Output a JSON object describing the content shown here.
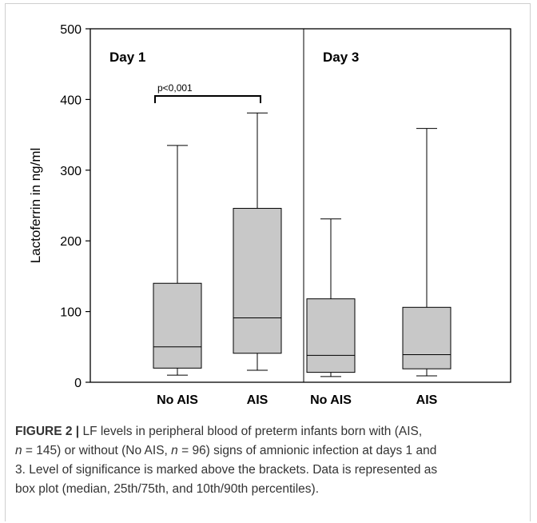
{
  "chart_data": {
    "type": "box",
    "ylabel": "Lactoferrin in ng/ml",
    "ylim": [
      0,
      500
    ],
    "yticks": [
      "0",
      "100",
      "200",
      "300",
      "400",
      "500"
    ],
    "panels": [
      {
        "label": "Day 1"
      },
      {
        "label": "Day 3"
      }
    ],
    "categories": [
      "No AIS",
      "AIS",
      "No AIS",
      "AIS"
    ],
    "boxes": [
      {
        "panel": "Day 1",
        "group": "No AIS",
        "p10": 10,
        "q1": 20,
        "median": 50,
        "q3": 140,
        "p90": 335
      },
      {
        "panel": "Day 1",
        "group": "AIS",
        "p10": 17,
        "q1": 41,
        "median": 91,
        "q3": 246,
        "p90": 381
      },
      {
        "panel": "Day 3",
        "group": "No AIS",
        "p10": 8,
        "q1": 14,
        "median": 38,
        "q3": 118,
        "p90": 231
      },
      {
        "panel": "Day 3",
        "group": "AIS",
        "p10": 9,
        "q1": 19,
        "median": 39,
        "q3": 106,
        "p90": 359
      }
    ],
    "annotations": [
      {
        "text": "p<0,001",
        "between": [
          "No AIS",
          "AIS"
        ],
        "panel": "Day 1",
        "y": 405
      }
    ],
    "box_color": "#c8c8c8",
    "line_color": "#000000"
  },
  "caption": {
    "label": "FIGURE 2 |",
    "line1": " LF levels in peripheral blood of preterm infants born with (AIS,",
    "n": "n",
    "line2a": " = 145) or without (No AIS, ",
    "line2b": " = 96) signs of amnionic infection at days 1 and",
    "line3": "3. Level of significance is marked above the brackets. Data is represented as",
    "line4": "box plot (median, 25th/75th, and 10th/90th percentiles)."
  }
}
